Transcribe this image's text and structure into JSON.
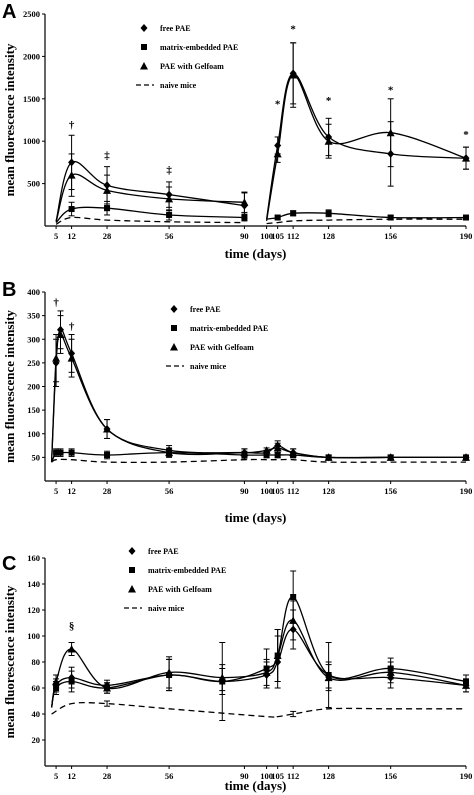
{
  "chart_data": [
    {
      "panel": "A",
      "type": "line",
      "xlabel": "time (days)",
      "ylabel": "mean fluorescence intensity",
      "xlim": [
        0,
        190
      ],
      "ylim": [
        0,
        2500
      ],
      "x_ticks": [
        5,
        12,
        28,
        56,
        90,
        100,
        105,
        112,
        128,
        156,
        190
      ],
      "y_ticks": [
        500,
        1000,
        1500,
        2000,
        2500
      ],
      "legend": [
        "free PAE",
        "matrix-embedded PAE",
        "PAE with Gelfoam",
        "naive mice"
      ],
      "series": [
        {
          "name": "free PAE",
          "marker": "diamond",
          "line": "solid",
          "segments": [
            {
              "x": [
                5,
                12,
                28,
                56,
                90
              ],
              "y": [
                60,
                750,
                480,
                370,
                240
              ],
              "err": [
                0,
                320,
                220,
                150,
                150
              ]
            },
            {
              "x": [
                100,
                105,
                112,
                128,
                156,
                190
              ],
              "y": [
                80,
                950,
                1800,
                1050,
                850,
                800
              ],
              "err": [
                0,
                100,
                360,
                220,
                380,
                130
              ]
            }
          ]
        },
        {
          "name": "matrix-embedded PAE",
          "marker": "square",
          "line": "solid",
          "segments": [
            {
              "x": [
                5,
                12,
                28,
                56,
                90
              ],
              "y": [
                40,
                200,
                210,
                130,
                100
              ],
              "err": [
                0,
                80,
                80,
                60,
                40
              ]
            },
            {
              "x": [
                100,
                105,
                112,
                128,
                156,
                190
              ],
              "y": [
                80,
                100,
                150,
                150,
                100,
                100
              ],
              "err": [
                0,
                20,
                30,
                40,
                20,
                20
              ]
            }
          ]
        },
        {
          "name": "PAE with Gelfoam",
          "marker": "triangle",
          "line": "solid",
          "segments": [
            {
              "x": [
                5,
                12,
                28,
                56,
                90
              ],
              "y": [
                50,
                600,
                420,
                320,
                280
              ],
              "err": [
                0,
                250,
                180,
                140,
                120
              ]
            },
            {
              "x": [
                100,
                105,
                112,
                128,
                156,
                190
              ],
              "y": [
                60,
                850,
                1780,
                1000,
                1100,
                800
              ],
              "err": [
                0,
                100,
                380,
                200,
                400,
                130
              ]
            }
          ]
        },
        {
          "name": "naive mice",
          "marker": "none",
          "line": "dashed",
          "segments": [
            {
              "x": [
                5,
                12,
                28,
                56,
                90
              ],
              "y": [
                20,
                100,
                70,
                50,
                40
              ],
              "err": [
                0,
                0,
                0,
                0,
                0
              ]
            },
            {
              "x": [
                100,
                105,
                112,
                128,
                156,
                190
              ],
              "y": [
                30,
                40,
                60,
                70,
                80,
                80
              ],
              "err": [
                0,
                0,
                0,
                0,
                0,
                0
              ]
            }
          ]
        }
      ],
      "annotations": [
        {
          "text": "†",
          "x": 12,
          "y": 1150
        },
        {
          "text": "‡",
          "x": 28,
          "y": 790
        },
        {
          "text": "‡",
          "x": 56,
          "y": 620
        },
        {
          "text": "*",
          "x": 105,
          "y": 1400
        },
        {
          "text": "*",
          "x": 112,
          "y": 2280
        },
        {
          "text": "*",
          "x": 128,
          "y": 1440
        },
        {
          "text": "*",
          "x": 156,
          "y": 1560
        },
        {
          "text": "*",
          "x": 190,
          "y": 1040
        }
      ]
    },
    {
      "panel": "B",
      "type": "line",
      "xlabel": "time (days)",
      "ylabel": "mean fluorescence intensity",
      "xlim": [
        0,
        190
      ],
      "ylim": [
        0,
        400
      ],
      "x_ticks": [
        5,
        12,
        28,
        56,
        90,
        100,
        105,
        112,
        128,
        156,
        190
      ],
      "y_ticks": [
        50,
        100,
        150,
        200,
        250,
        300,
        350,
        400
      ],
      "legend": [
        "free PAE",
        "matrix-embedded PAE",
        "PAE with Gelfoam",
        "naive mice"
      ],
      "series": [
        {
          "name": "free PAE",
          "marker": "diamond",
          "line": "solid",
          "segments": [
            {
              "x": [
                3,
                5,
                7,
                12,
                28,
                56,
                90,
                100,
                105,
                112,
                128,
                156,
                190
              ],
              "y": [
                40,
                250,
                320,
                270,
                110,
                65,
                60,
                60,
                75,
                60,
                50,
                50,
                50
              ],
              "err": [
                0,
                50,
                40,
                40,
                20,
                10,
                8,
                5,
                10,
                8,
                5,
                5,
                5
              ]
            }
          ]
        },
        {
          "name": "matrix-embedded PAE",
          "marker": "square",
          "line": "solid",
          "segments": [
            {
              "x": [
                3,
                5,
                7,
                12,
                28,
                56,
                90,
                100,
                105,
                112,
                128,
                156,
                190
              ],
              "y": [
                40,
                60,
                60,
                60,
                55,
                60,
                55,
                55,
                55,
                55,
                50,
                50,
                50
              ],
              "err": [
                0,
                8,
                8,
                8,
                8,
                8,
                8,
                6,
                6,
                6,
                5,
                5,
                5
              ]
            }
          ]
        },
        {
          "name": "PAE with Gelfoam",
          "marker": "triangle",
          "line": "solid",
          "segments": [
            {
              "x": [
                3,
                5,
                7,
                12,
                28,
                56,
                90,
                100,
                105,
                112,
                128,
                156,
                190
              ],
              "y": [
                40,
                260,
                310,
                260,
                110,
                60,
                60,
                65,
                70,
                60,
                50,
                50,
                50
              ],
              "err": [
                0,
                50,
                40,
                40,
                20,
                10,
                8,
                5,
                10,
                8,
                5,
                5,
                5
              ]
            }
          ]
        },
        {
          "name": "naive mice",
          "marker": "none",
          "line": "dashed",
          "segments": [
            {
              "x": [
                3,
                5,
                12,
                28,
                56,
                90,
                100,
                105,
                112,
                128,
                156,
                190
              ],
              "y": [
                40,
                45,
                45,
                40,
                40,
                45,
                45,
                45,
                45,
                40,
                40,
                40
              ],
              "err": [
                0,
                0,
                0,
                0,
                0,
                0,
                0,
                0,
                0,
                0,
                0,
                0
              ]
            }
          ]
        }
      ],
      "annotations": [
        {
          "text": "†",
          "x": 5,
          "y": 370
        },
        {
          "text": "†",
          "x": 12,
          "y": 320
        }
      ]
    },
    {
      "panel": "C",
      "type": "line",
      "xlabel": "time (days)",
      "ylabel": "mean fluorescence intensity",
      "xlim": [
        0,
        190
      ],
      "ylim": [
        0,
        160
      ],
      "x_ticks": [
        5,
        12,
        28,
        56,
        90,
        100,
        105,
        112,
        128,
        156,
        190
      ],
      "y_ticks": [
        20,
        40,
        60,
        80,
        100,
        120,
        140,
        160
      ],
      "legend": [
        "free PAE",
        "matrix-embedded PAE",
        "PAE with Gelfoam",
        "naive mice"
      ],
      "series": [
        {
          "name": "free PAE",
          "marker": "diamond",
          "line": "solid",
          "segments": [
            {
              "x": [
                3,
                5,
                12,
                28,
                56,
                80,
                100,
                105,
                112,
                128,
                156,
                190
              ],
              "y": [
                45,
                62,
                68,
                62,
                70,
                65,
                70,
                80,
                105,
                70,
                68,
                62
              ],
              "err": [
                0,
                5,
                8,
                4,
                12,
                10,
                10,
                20,
                15,
                10,
                8,
                5
              ]
            }
          ]
        },
        {
          "name": "matrix-embedded PAE",
          "marker": "square",
          "line": "solid",
          "segments": [
            {
              "x": [
                3,
                5,
                12,
                28,
                56,
                80,
                100,
                105,
                112,
                128,
                156,
                190
              ],
              "y": [
                45,
                60,
                65,
                60,
                70,
                65,
                75,
                85,
                130,
                70,
                75,
                65
              ],
              "err": [
                0,
                5,
                8,
                4,
                12,
                30,
                15,
                20,
                20,
                25,
                8,
                5
              ]
            }
          ]
        },
        {
          "name": "PAE with Gelfoam",
          "marker": "triangle",
          "line": "solid",
          "segments": [
            {
              "x": [
                3,
                5,
                12,
                28,
                56,
                80,
                100,
                105,
                112,
                128,
                156,
                190
              ],
              "y": [
                45,
                65,
                90,
                60,
                72,
                68,
                72,
                85,
                112,
                68,
                72,
                62
              ],
              "err": [
                0,
                5,
                5,
                4,
                12,
                10,
                10,
                20,
                15,
                10,
                8,
                5
              ]
            }
          ]
        },
        {
          "name": "naive mice",
          "marker": "none",
          "line": "dashed",
          "segments": [
            {
              "x": [
                3,
                12,
                28,
                56,
                100,
                105,
                112,
                128,
                156,
                190
              ],
              "y": [
                40,
                48,
                48,
                44,
                38,
                38,
                40,
                44,
                44,
                44
              ],
              "err": [
                0,
                0,
                2,
                0,
                0,
                0,
                2,
                0,
                0,
                0
              ]
            }
          ]
        }
      ],
      "annotations": [
        {
          "text": "§",
          "x": 12,
          "y": 105
        }
      ]
    }
  ]
}
